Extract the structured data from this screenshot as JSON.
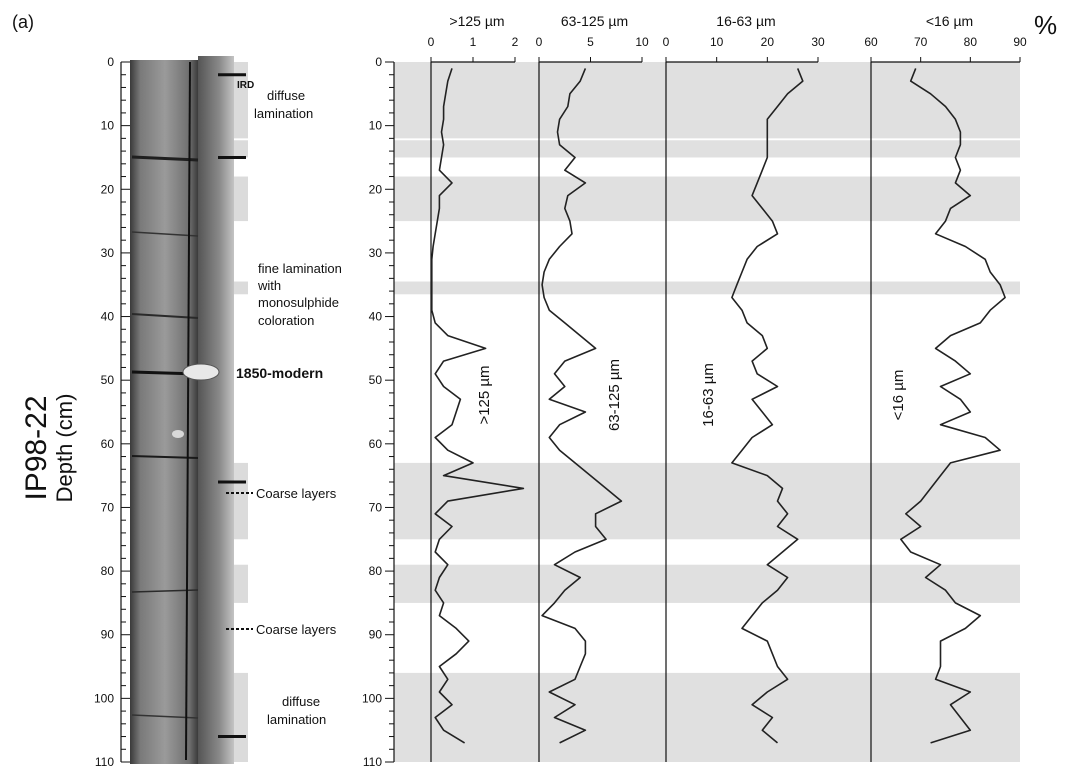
{
  "panel_label": "(a)",
  "core_name": "IP98-22",
  "depth_label": "Depth (cm)",
  "percent_label": "%",
  "annotations": {
    "ird": "IRD",
    "diffuse_top": [
      "diffuse",
      "lamination"
    ],
    "fine": [
      "fine lamination",
      "with",
      "monosulphide",
      "coloration"
    ],
    "modern": "1850-modern",
    "coarse_1": "Coarse layers",
    "coarse_2": "Coarse layers",
    "diffuse_bottom": [
      "diffuse",
      "lamination"
    ]
  },
  "chart_data": {
    "type": "line",
    "depth_axis": {
      "label": "Depth (cm)",
      "range": [
        0,
        110
      ],
      "ticks": [
        0,
        10,
        20,
        30,
        40,
        50,
        60,
        70,
        80,
        90,
        100,
        110
      ]
    },
    "shaded_intervals": [
      [
        0,
        12
      ],
      [
        12.3,
        15
      ],
      [
        18,
        25
      ],
      [
        34.5,
        36.5
      ],
      [
        63,
        75
      ],
      [
        79,
        85
      ],
      [
        96,
        110
      ]
    ],
    "ird_markers": [
      2,
      15,
      66,
      106
    ],
    "panels": [
      {
        "title": ">125 µm",
        "series_label": ">125 µm",
        "xlim": [
          0,
          2
        ],
        "ticks": [
          0,
          1,
          2
        ],
        "depth": [
          1,
          3,
          5,
          7,
          9,
          11,
          13,
          15,
          17,
          19,
          21,
          23,
          25,
          27,
          29,
          31,
          33,
          35,
          37,
          39,
          41,
          43,
          45,
          47,
          49,
          51,
          53,
          55,
          57,
          59,
          61,
          63,
          65,
          67,
          69,
          71,
          73,
          75,
          77,
          79,
          81,
          83,
          85,
          87,
          89,
          91,
          93,
          95,
          97,
          99,
          101,
          103,
          105,
          107
        ],
        "values": [
          0.5,
          0.4,
          0.35,
          0.3,
          0.3,
          0.25,
          0.3,
          0.25,
          0.2,
          0.5,
          0.2,
          0.2,
          0.15,
          0.1,
          0.05,
          0.02,
          0.02,
          0.02,
          0.02,
          0.02,
          0.1,
          0.4,
          1.3,
          0.3,
          0.1,
          0.3,
          0.7,
          0.6,
          0.5,
          0.1,
          0.4,
          1.0,
          0.3,
          2.2,
          0.4,
          0.1,
          0.5,
          0.2,
          0.1,
          0.4,
          0.2,
          0.1,
          0.3,
          0.2,
          0.6,
          0.9,
          0.6,
          0.2,
          0.4,
          0.2,
          0.5,
          0.1,
          0.3,
          0.8
        ]
      },
      {
        "title": "63-125 µm",
        "series_label": "63-125 µm",
        "xlim": [
          0,
          10
        ],
        "ticks": [
          0,
          5,
          10
        ],
        "depth": [
          1,
          3,
          5,
          7,
          9,
          11,
          13,
          15,
          17,
          19,
          21,
          23,
          25,
          27,
          29,
          31,
          33,
          35,
          37,
          39,
          41,
          43,
          45,
          47,
          49,
          51,
          53,
          55,
          57,
          59,
          61,
          63,
          65,
          67,
          69,
          71,
          73,
          75,
          77,
          79,
          81,
          83,
          85,
          87,
          89,
          91,
          93,
          95,
          97,
          99,
          101,
          103,
          105,
          107
        ],
        "values": [
          4.5,
          4.0,
          3.0,
          2.8,
          2.0,
          1.8,
          2.0,
          3.5,
          2.5,
          4.5,
          2.8,
          2.5,
          3.0,
          3.2,
          2.0,
          1.0,
          0.5,
          0.3,
          0.5,
          1.0,
          2.5,
          4.0,
          5.5,
          2.5,
          1.5,
          2.5,
          1.0,
          4.5,
          2.0,
          1.0,
          2.0,
          3.5,
          5.0,
          6.5,
          8.0,
          5.5,
          5.5,
          6.5,
          3.5,
          1.5,
          4.0,
          2.5,
          1.5,
          0.3,
          3.5,
          4.5,
          4.5,
          4.0,
          3.5,
          1.0,
          3.5,
          1.5,
          4.5,
          2.0
        ]
      },
      {
        "title": "16-63 µm",
        "series_label": "16-63 µm",
        "xlim": [
          0,
          30
        ],
        "ticks": [
          0,
          10,
          20,
          30
        ],
        "depth": [
          1,
          3,
          5,
          7,
          9,
          11,
          13,
          15,
          17,
          19,
          21,
          23,
          25,
          27,
          29,
          31,
          33,
          35,
          37,
          39,
          41,
          43,
          45,
          47,
          49,
          51,
          53,
          55,
          57,
          59,
          61,
          63,
          65,
          67,
          69,
          71,
          73,
          75,
          77,
          79,
          81,
          83,
          85,
          87,
          89,
          91,
          93,
          95,
          97,
          99,
          101,
          103,
          105,
          107
        ],
        "values": [
          26,
          27,
          24,
          22,
          20,
          20,
          20,
          20,
          19,
          18,
          17,
          19,
          21,
          22,
          18,
          16,
          15,
          14,
          13,
          15,
          16,
          19,
          20,
          17,
          18,
          22,
          17,
          19,
          21,
          17,
          15,
          13,
          20,
          23,
          22,
          24,
          22,
          26,
          23,
          20,
          24,
          22,
          19,
          17,
          15,
          20,
          21,
          22,
          24,
          20,
          17,
          21,
          19,
          22
        ]
      },
      {
        "title": "<16 µm",
        "series_label": "<16 µm",
        "xlim": [
          60,
          90
        ],
        "ticks": [
          60,
          70,
          80,
          90
        ],
        "depth": [
          1,
          3,
          5,
          7,
          9,
          11,
          13,
          15,
          17,
          19,
          21,
          23,
          25,
          27,
          29,
          31,
          33,
          35,
          37,
          39,
          41,
          43,
          45,
          47,
          49,
          51,
          53,
          55,
          57,
          59,
          61,
          63,
          65,
          67,
          69,
          71,
          73,
          75,
          77,
          79,
          81,
          83,
          85,
          87,
          89,
          91,
          93,
          95,
          97,
          99,
          101,
          103,
          105,
          107
        ],
        "values": [
          69,
          68,
          72,
          75,
          77,
          78,
          78,
          77,
          78,
          77,
          80,
          76,
          75,
          73,
          79,
          83,
          84,
          86,
          87,
          84,
          82,
          76,
          73,
          77,
          80,
          74,
          78,
          80,
          74,
          83,
          86,
          76,
          74,
          72,
          70,
          67,
          70,
          66,
          68,
          74,
          71,
          75,
          77,
          82,
          79,
          74,
          74,
          74,
          73,
          80,
          76,
          78,
          80,
          72
        ]
      }
    ]
  }
}
